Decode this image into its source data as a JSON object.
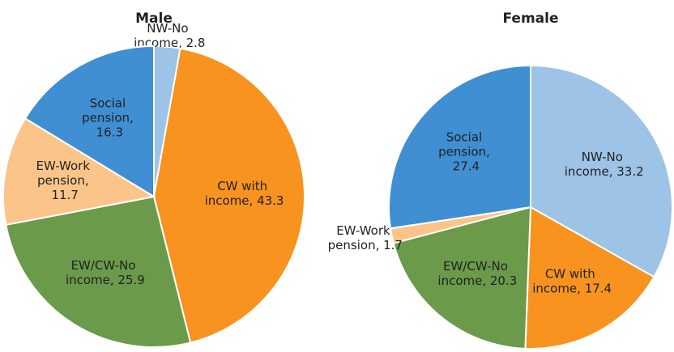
{
  "chart_data": [
    {
      "type": "pie",
      "title": "Male",
      "categories": [
        "NW-No income",
        "CW with income",
        "EW/CW-No income",
        "EW-Work pension",
        "Social pension"
      ],
      "values": [
        2.8,
        43.3,
        25.9,
        11.7,
        16.3
      ],
      "value_labels": [
        "NW-No income, 2.8",
        "CW with income, 43.3",
        "EW/CW-No income, 25.9",
        "EW-Work pension, 11.7",
        "Social pension, 16.3"
      ],
      "colors": [
        "#9dc3e6",
        "#f7931e",
        "#6a9a4a",
        "#fbc58a",
        "#3f8fd2"
      ]
    },
    {
      "type": "pie",
      "title": "Female",
      "categories": [
        "NW-No income",
        "CW with income",
        "EW/CW-No income",
        "EW-Work pension",
        "Social pension"
      ],
      "values": [
        33.2,
        17.4,
        20.3,
        1.7,
        27.4
      ],
      "value_labels": [
        "NW-No income, 33.2",
        "CW with income, 17.4",
        "EW/CW-No income, 20.3",
        "EW-Work pension, 1.7",
        "Social pension, 27.4"
      ],
      "colors": [
        "#9dc3e6",
        "#f7931e",
        "#6a9a4a",
        "#fbc58a",
        "#3f8fd2"
      ]
    }
  ]
}
